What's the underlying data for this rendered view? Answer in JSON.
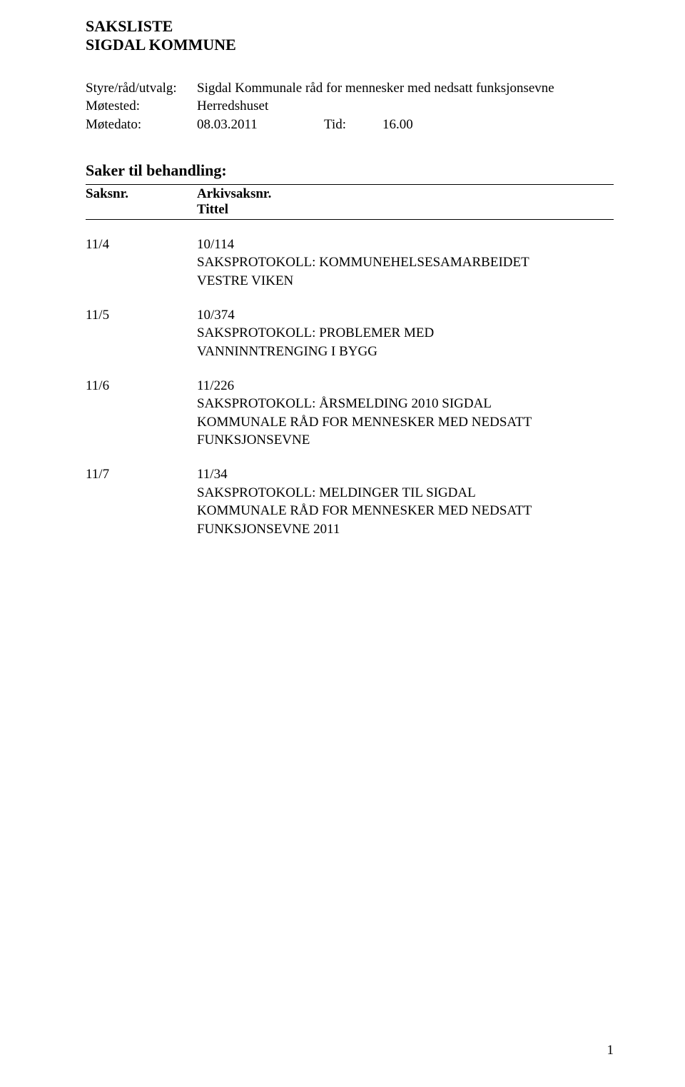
{
  "heading1": "SAKSLISTE",
  "heading2": "SIGDAL KOMMUNE",
  "meta": {
    "styre_label": "Styre/råd/utvalg:",
    "styre_value": "Sigdal Kommunale råd for mennesker med nedsatt funksjonsevne",
    "motested_label": "Møtested:",
    "motested_value": "Herredshuset",
    "motedato_label": "Møtedato:",
    "motedato_value": "08.03.2011",
    "tid_label": "Tid:",
    "tid_value": "16.00"
  },
  "section_title": "Saker til behandling:",
  "table_header": {
    "saksnr": "Saksnr.",
    "arkiv": "Arkivsaksnr.",
    "tittel": "Tittel"
  },
  "items": [
    {
      "num": "11/4",
      "arkiv": "10/114",
      "title": "SAKSPROTOKOLL: KOMMUNEHELSESAMARBEIDET VESTRE VIKEN"
    },
    {
      "num": "11/5",
      "arkiv": "10/374",
      "title": "SAKSPROTOKOLL: PROBLEMER MED VANNINNTRENGING I BYGG"
    },
    {
      "num": "11/6",
      "arkiv": "11/226",
      "title": "SAKSPROTOKOLL: ÅRSMELDING 2010 SIGDAL KOMMUNALE RÅD FOR MENNESKER MED NEDSATT FUNKSJONSEVNE"
    },
    {
      "num": "11/7",
      "arkiv": "11/34",
      "title": "SAKSPROTOKOLL: MELDINGER TIL SIGDAL KOMMUNALE RÅD FOR MENNESKER MED NEDSATT FUNKSJONSEVNE 2011"
    }
  ],
  "page_number": "1"
}
